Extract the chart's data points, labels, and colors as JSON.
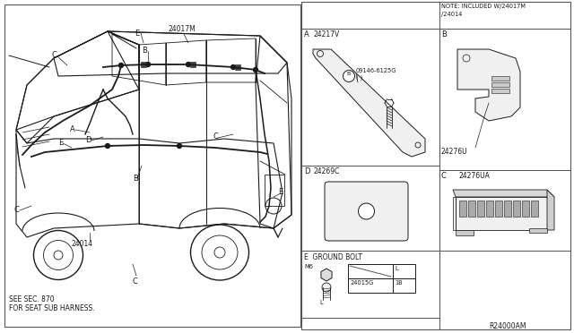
{
  "bg_color": "#ffffff",
  "line_color": "#1a1a1a",
  "part_24017M": "24017M",
  "part_24217V": "24217V",
  "part_09146_line1": "09146-6125G",
  "part_09146_line2": "( )",
  "part_24276U": "24276U",
  "part_24276UA": "24276UA",
  "part_24269C": "24269C",
  "part_24015G": "24015G",
  "part_number_main": "24014",
  "note_text_line1": "NOTE: INCLUDED W/24017M",
  "note_text_line2": "/24014",
  "label_A": "A",
  "label_B": "B",
  "label_C": "C",
  "label_D": "D",
  "label_E_full": "E  GROUND BOLT",
  "label_M6": "M6",
  "label_L": "L",
  "label_1B": "1B",
  "label_see_line1": "SEE SEC. 870",
  "label_see_line2": "FOR SEAT SUB HARNESS.",
  "ref_code": "R24000AM",
  "font_tiny": 4.8,
  "font_small": 5.5,
  "font_label": 6.0
}
